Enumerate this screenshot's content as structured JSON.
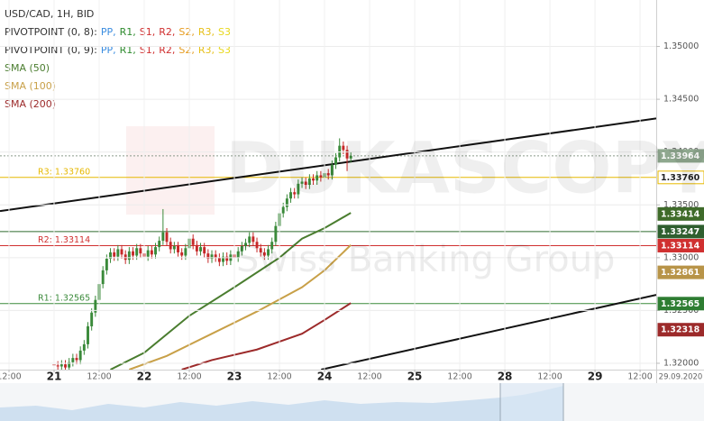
{
  "chart_data": {
    "type": "candlestick",
    "title": "USD/CAD, 1H, BID",
    "pivot_legends": [
      {
        "label": "PIVOTPOINT (0, 8):",
        "items": [
          {
            "name": "PP,",
            "color": "#3b8de0"
          },
          {
            "name": "R1,",
            "color": "#2e8b2e"
          },
          {
            "name": "S1,",
            "color": "#d03030"
          },
          {
            "name": "R2,",
            "color": "#d03030"
          },
          {
            "name": "S2,",
            "color": "#e69b1e"
          },
          {
            "name": "R3,",
            "color": "#e6c019"
          },
          {
            "name": "S3",
            "color": "#e8d81c"
          }
        ]
      },
      {
        "label": "PIVOTPOINT (0, 9):",
        "items": [
          {
            "name": "PP,",
            "color": "#3b8de0"
          },
          {
            "name": "R1,",
            "color": "#2e8b2e"
          },
          {
            "name": "S1,",
            "color": "#d03030"
          },
          {
            "name": "R2,",
            "color": "#d03030"
          },
          {
            "name": "S2,",
            "color": "#e69b1e"
          },
          {
            "name": "R3,",
            "color": "#e6c019"
          },
          {
            "name": "S3",
            "color": "#e8d81c"
          }
        ]
      }
    ],
    "up_color": "#3a8a3a",
    "down_color": "#c62828",
    "x": [
      0,
      1,
      2,
      3,
      4,
      5,
      6,
      7,
      8,
      9,
      10,
      11,
      12,
      13,
      14,
      15,
      16,
      17,
      18,
      19,
      20,
      21,
      22,
      23,
      24,
      25,
      26,
      27,
      28,
      29,
      30,
      31,
      32,
      33,
      34,
      35,
      36,
      37,
      38,
      39,
      40,
      41,
      42,
      43,
      44,
      45,
      46,
      47,
      48,
      49,
      50,
      51,
      52,
      53,
      54,
      55,
      56,
      57,
      58,
      59,
      60,
      61,
      62,
      63,
      64,
      65,
      66,
      67,
      68,
      69,
      70,
      71,
      72,
      73,
      74,
      75,
      76,
      77,
      78,
      79
    ],
    "open": [
      1.3199,
      1.3198,
      1.3197,
      1.3199,
      1.3196,
      1.3201,
      1.3205,
      1.3203,
      1.3212,
      1.3218,
      1.3235,
      1.3248,
      1.326,
      1.3275,
      1.3288,
      1.3299,
      1.3305,
      1.3301,
      1.3308,
      1.3303,
      1.3298,
      1.3306,
      1.3302,
      1.3309,
      1.3304,
      1.3301,
      1.3307,
      1.3303,
      1.331,
      1.3316,
      1.3324,
      1.3315,
      1.3308,
      1.3311,
      1.3305,
      1.3302,
      1.3309,
      1.3318,
      1.3312,
      1.3306,
      1.331,
      1.3304,
      1.3299,
      1.3303,
      1.33,
      1.3296,
      1.3301,
      1.3297,
      1.3303,
      1.33,
      1.3306,
      1.3311,
      1.3314,
      1.332,
      1.3315,
      1.3309,
      1.3305,
      1.3302,
      1.3308,
      1.3315,
      1.333,
      1.3342,
      1.3348,
      1.3356,
      1.3362,
      1.336,
      1.337,
      1.3372,
      1.3369,
      1.3375,
      1.3373,
      1.3378,
      1.3376,
      1.338,
      1.3378,
      1.3388,
      1.3395,
      1.3406,
      1.3402,
      1.3394
    ],
    "high": [
      1.3203,
      1.3202,
      1.3203,
      1.3203,
      1.3205,
      1.3209,
      1.3209,
      1.3216,
      1.3222,
      1.3239,
      1.3252,
      1.3264,
      1.3279,
      1.3292,
      1.3303,
      1.3309,
      1.3309,
      1.3312,
      1.3312,
      1.3307,
      1.331,
      1.331,
      1.3313,
      1.3313,
      1.3308,
      1.3311,
      1.3311,
      1.3314,
      1.332,
      1.3346,
      1.3328,
      1.3319,
      1.3315,
      1.3315,
      1.3309,
      1.3313,
      1.334,
      1.3322,
      1.3316,
      1.3314,
      1.3314,
      1.3308,
      1.3307,
      1.3307,
      1.3304,
      1.3305,
      1.3305,
      1.3307,
      1.3307,
      1.331,
      1.3315,
      1.3318,
      1.3324,
      1.3324,
      1.3319,
      1.3313,
      1.3309,
      1.3312,
      1.3319,
      1.3334,
      1.3346,
      1.3352,
      1.336,
      1.3366,
      1.3366,
      1.3374,
      1.3376,
      1.3376,
      1.3379,
      1.3379,
      1.3382,
      1.3382,
      1.3384,
      1.3384,
      1.3392,
      1.3399,
      1.3413,
      1.341,
      1.3406,
      1.34
    ],
    "low": [
      1.3194,
      1.3193,
      1.3193,
      1.3192,
      1.3192,
      1.3197,
      1.3199,
      1.3199,
      1.3208,
      1.3214,
      1.3231,
      1.3244,
      1.3256,
      1.3271,
      1.3284,
      1.3295,
      1.3297,
      1.3297,
      1.3299,
      1.3294,
      1.3294,
      1.3298,
      1.3298,
      1.33,
      1.3297,
      1.3297,
      1.3299,
      1.3299,
      1.3306,
      1.3312,
      1.3311,
      1.3304,
      1.3304,
      1.3301,
      1.3298,
      1.3298,
      1.3305,
      1.3308,
      1.3302,
      1.3302,
      1.33,
      1.3295,
      1.3295,
      1.3296,
      1.3292,
      1.3292,
      1.3293,
      1.3293,
      1.3296,
      1.3296,
      1.3302,
      1.3307,
      1.331,
      1.3311,
      1.3305,
      1.3301,
      1.3298,
      1.3298,
      1.3304,
      1.3311,
      1.3326,
      1.3338,
      1.3344,
      1.3352,
      1.3356,
      1.3356,
      1.3366,
      1.3365,
      1.3365,
      1.3369,
      1.3369,
      1.3372,
      1.3372,
      1.3374,
      1.3374,
      1.3384,
      1.3391,
      1.3398,
      1.3382,
      1.339
    ],
    "close": [
      1.3198,
      1.3197,
      1.3199,
      1.3196,
      1.3201,
      1.3205,
      1.3203,
      1.3212,
      1.3218,
      1.3235,
      1.3248,
      1.326,
      1.3275,
      1.3288,
      1.3299,
      1.3305,
      1.3301,
      1.3308,
      1.3303,
      1.3298,
      1.3306,
      1.3302,
      1.3309,
      1.3304,
      1.3301,
      1.3307,
      1.3303,
      1.331,
      1.3316,
      1.3324,
      1.3315,
      1.3308,
      1.3311,
      1.3305,
      1.3302,
      1.3309,
      1.3318,
      1.3312,
      1.3306,
      1.331,
      1.3304,
      1.3299,
      1.3303,
      1.33,
      1.3296,
      1.3301,
      1.3297,
      1.3303,
      1.33,
      1.3306,
      1.3311,
      1.3314,
      1.332,
      1.3315,
      1.3309,
      1.3305,
      1.3302,
      1.3308,
      1.3315,
      1.333,
      1.3342,
      1.3348,
      1.3356,
      1.3362,
      1.336,
      1.337,
      1.3372,
      1.3369,
      1.3375,
      1.3373,
      1.3378,
      1.3376,
      1.338,
      1.3378,
      1.3388,
      1.3395,
      1.3406,
      1.3402,
      1.3394,
      1.33964
    ],
    "series": [
      {
        "name": "SMA (50)",
        "color": "#4a7d2f",
        "x": [
          15,
          24,
          36,
          48,
          60,
          66,
          72,
          79
        ],
        "values": [
          1.3194,
          1.321,
          1.3245,
          1.3272,
          1.33,
          1.3318,
          1.3328,
          1.33424
        ]
      },
      {
        "name": "SMA (100)",
        "color": "#c8a048",
        "x": [
          20,
          30,
          42,
          54,
          66,
          72,
          79
        ],
        "values": [
          1.3194,
          1.3207,
          1.3228,
          1.3249,
          1.3272,
          1.3288,
          1.3312
        ]
      },
      {
        "name": "SMA (200)",
        "color": "#9c2a2a",
        "x": [
          34,
          42,
          54,
          66,
          72,
          79
        ],
        "values": [
          1.3194,
          1.3203,
          1.3213,
          1.3228,
          1.3241,
          1.3257
        ]
      }
    ],
    "trendlines": [
      {
        "x": [
          -14.4,
          160.3
        ],
        "values": [
          1.33441,
          1.34319
        ]
      },
      {
        "x": [
          71.1,
          160.3
        ],
        "values": [
          1.3194,
          1.32648
        ]
      }
    ],
    "levels": [
      {
        "value": 1.33964,
        "color": "#8a9a8a",
        "style": "dotted"
      },
      {
        "label": "R3: 1.33760",
        "value": 1.3376,
        "color": "#e6b800"
      },
      {
        "value": 1.33247,
        "color": "#2f6b2f"
      },
      {
        "label": "R2: 1.33114",
        "value": 1.33114,
        "color": "#d03030"
      },
      {
        "label": "R1: 1.32565",
        "value": 1.32565,
        "color": "#3a8a3a"
      }
    ],
    "price_labels": [
      {
        "label": "1.33964",
        "value": 1.33964,
        "color": "#8fa88f",
        "text_color": "#ffffff"
      },
      {
        "label": "1.33760",
        "value": 1.3376,
        "color": "#ffffff",
        "text_color": "#222222"
      },
      {
        "label": "1.33414",
        "value": 1.33414,
        "color": "#3f6b2a",
        "text_color": "#ffffff"
      },
      {
        "label": "1.33247",
        "value": 1.33247,
        "color": "#2f5f2f",
        "text_color": "#ffffff"
      },
      {
        "label": "1.33114",
        "value": 1.33114,
        "color": "#d03030",
        "text_color": "#ffffff"
      },
      {
        "label": "1.32861",
        "value": 1.32861,
        "color": "#b89448",
        "text_color": "#ffffff"
      },
      {
        "label": "1.32565",
        "value": 1.32565,
        "color": "#2e7d32",
        "text_color": "#ffffff"
      },
      {
        "label": "1.32318",
        "value": 1.32318,
        "color": "#9c2a2a",
        "text_color": "#ffffff"
      }
    ],
    "xlim": [
      -14.4,
      160.3
    ],
    "ylim": [
      1.3194,
      1.3544
    ],
    "xticks": [
      {
        "value": -12,
        "label": "12:00"
      },
      {
        "value": 0,
        "label": "21"
      },
      {
        "value": 12,
        "label": "12:00"
      },
      {
        "value": 24,
        "label": "22"
      },
      {
        "value": 36,
        "label": "12:00"
      },
      {
        "value": 48,
        "label": "23"
      },
      {
        "value": 60,
        "label": "12:00"
      },
      {
        "value": 72,
        "label": "24"
      },
      {
        "value": 84,
        "label": "12:00"
      },
      {
        "value": 96,
        "label": "25"
      },
      {
        "value": 108,
        "label": "12:00"
      },
      {
        "value": 120,
        "label": "28"
      },
      {
        "value": 132,
        "label": "12:00"
      },
      {
        "value": 144,
        "label": "29"
      },
      {
        "value": 156,
        "label": "12:00"
      }
    ],
    "yticks": [
      {
        "value": 1.32,
        "label": "1.32000"
      },
      {
        "value": 1.325,
        "label": "1.32500"
      },
      {
        "value": 1.33,
        "label": "1.33000"
      },
      {
        "value": 1.335,
        "label": "1.33500"
      },
      {
        "value": 1.34,
        "label": "1.34000"
      },
      {
        "value": 1.345,
        "label": "1.34500"
      },
      {
        "value": 1.35,
        "label": "1.35000"
      }
    ],
    "grid": true,
    "date_label": "29.09.2020",
    "watermark": [
      "DUKASCOPY",
      "Swiss Banking Group"
    ]
  }
}
